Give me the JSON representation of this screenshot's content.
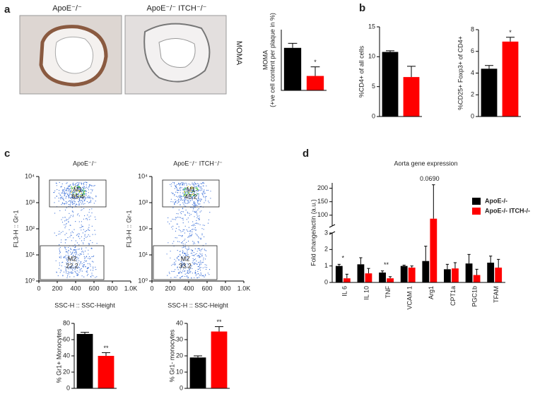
{
  "panel_labels": [
    "a",
    "b",
    "c",
    "d"
  ],
  "images": {
    "titles": [
      "ApoE⁻/⁻",
      "ApoE⁻/⁻ ITCH⁻/⁻"
    ],
    "side_label": "MOMA"
  },
  "chart_data": [
    {
      "type": "bar",
      "y_label": [
        "MOMA",
        "(+ve cell content per plaque in %)"
      ],
      "values": [
        28,
        9.5
      ],
      "errors": [
        3,
        6
      ],
      "colors": [
        "#000000",
        "#ff0000"
      ],
      "ylim": [
        0,
        40
      ],
      "annotations": [
        null,
        "*"
      ]
    },
    {
      "type": "bar",
      "y_label": "%CD4+ of all cells",
      "values": [
        10.8,
        6.6
      ],
      "errors": [
        0.2,
        1.8
      ],
      "colors": [
        "#000000",
        "#ff0000"
      ],
      "ylim": [
        0,
        15
      ],
      "yticks": [
        0,
        5,
        10,
        15
      ],
      "annotations": [
        null,
        null
      ]
    },
    {
      "type": "bar",
      "y_label": "%CD25+ Foxp3+ of CD4+",
      "values": [
        4.4,
        6.9
      ],
      "errors": [
        0.3,
        0.4
      ],
      "colors": [
        "#000000",
        "#ff0000"
      ],
      "ylim": [
        0,
        8
      ],
      "yticks": [
        0,
        2,
        4,
        6,
        8
      ],
      "annotations": [
        null,
        "*"
      ]
    },
    {
      "type": "scatter",
      "title": "ApoE⁻/⁻",
      "x_label": "SSC-H :: SSC-Height",
      "y_label": "FL3-H :: Gr-1",
      "xlim": [
        0,
        1000
      ],
      "xticks": [
        0,
        200,
        400,
        600,
        800,
        {
          "value": 1000,
          "label": "1.0K"
        }
      ],
      "ylim": [
        1,
        10000
      ],
      "log_y": true,
      "yticks": [
        {
          "value": 1,
          "label": "10⁰"
        },
        {
          "value": 10,
          "label": "10¹"
        },
        {
          "value": 100,
          "label": "10²"
        },
        {
          "value": 1000,
          "label": "10³"
        },
        {
          "value": 10000,
          "label": "10⁴"
        }
      ],
      "gates": [
        {
          "name": "M1",
          "value": 65.4
        },
        {
          "name": "M2",
          "value": 22.2
        }
      ]
    },
    {
      "type": "scatter",
      "title": "ApoE⁻/⁻ ITCH⁻/⁻",
      "x_label": "SSC-H :: SSC-Height",
      "y_label": "FL3-H :: Gr-1",
      "xlim": [
        0,
        1000
      ],
      "xticks": [
        0,
        200,
        400,
        600,
        800,
        {
          "value": 1000,
          "label": "1.0K"
        }
      ],
      "ylim": [
        1,
        10000
      ],
      "log_y": true,
      "yticks": [
        {
          "value": 1,
          "label": "10⁰"
        },
        {
          "value": 10,
          "label": "10¹"
        },
        {
          "value": 100,
          "label": "10²"
        },
        {
          "value": 1000,
          "label": "10³"
        },
        {
          "value": 10000,
          "label": "10⁴"
        }
      ],
      "gates": [
        {
          "name": "M1",
          "value": 45.2
        },
        {
          "name": "M2",
          "value": 33.2
        }
      ]
    },
    {
      "type": "bar",
      "y_label": "% Gr1+ Monocytes",
      "values": [
        67,
        40
      ],
      "errors": [
        2,
        4
      ],
      "colors": [
        "#000000",
        "#ff0000"
      ],
      "ylim": [
        0,
        80
      ],
      "yticks": [
        0,
        20,
        40,
        60,
        80
      ],
      "annotations": [
        null,
        "**"
      ]
    },
    {
      "type": "bar",
      "y_label": "% Gr1- monocytes",
      "values": [
        19,
        35
      ],
      "errors": [
        1,
        3
      ],
      "colors": [
        "#000000",
        "#ff0000"
      ],
      "ylim": [
        0,
        40
      ],
      "yticks": [
        0,
        10,
        20,
        30,
        40
      ],
      "annotations": [
        null,
        "**"
      ]
    },
    {
      "type": "grouped",
      "title": "Aorta gene expression",
      "y_label": "Fold change/actin (a.u.)",
      "categories": [
        "IL 6",
        "IL 10",
        "TNF",
        "VCAM 1",
        "Arg1",
        "CPT1a",
        "PGC1b",
        "TFAM"
      ],
      "series": [
        {
          "name": "ApoE-/-",
          "color": "#000000",
          "values": [
            1.0,
            1.1,
            0.6,
            1.0,
            1.3,
            0.8,
            1.15,
            1.2
          ],
          "errors": [
            0.1,
            0.4,
            0.1,
            0.05,
            0.9,
            0.3,
            0.55,
            0.4
          ]
        },
        {
          "name": "ApoE-/- ITCH-/-",
          "color": "#ff0000",
          "values": [
            0.25,
            0.55,
            0.25,
            0.9,
            87,
            0.85,
            0.45,
            0.9
          ],
          "errors": [
            0.25,
            0.3,
            0.1,
            0.1,
            126,
            0.35,
            0.35,
            0.5
          ]
        }
      ],
      "ylim": [
        0,
        220
      ],
      "ybreak": [
        3,
        60
      ],
      "yticks": [
        0,
        1,
        2,
        3,
        100,
        150,
        200
      ],
      "annotations": [
        "*",
        null,
        "**",
        null,
        "0.0690",
        null,
        null,
        null
      ],
      "legend": "right"
    }
  ]
}
